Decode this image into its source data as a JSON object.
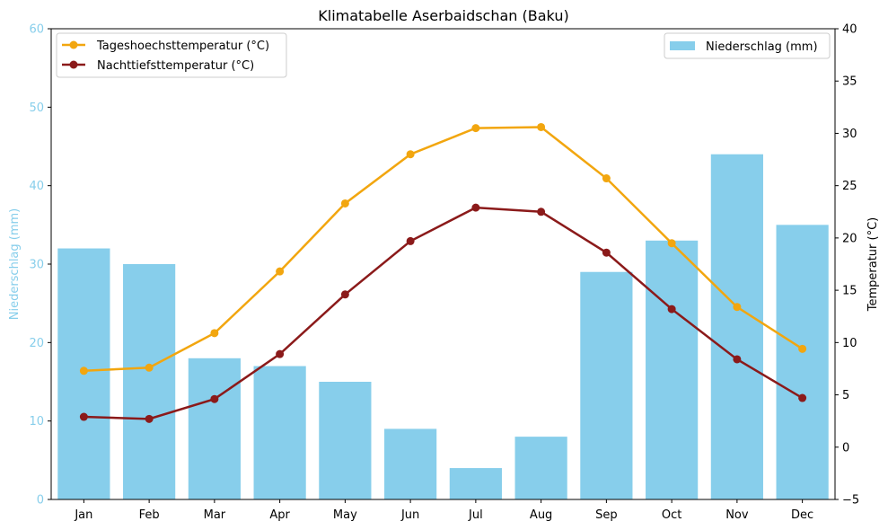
{
  "chart_data": {
    "type": "bar+line",
    "title": "Klimatabelle Aserbaidschan (Baku)",
    "categories": [
      "Jan",
      "Feb",
      "Mar",
      "Apr",
      "May",
      "Jun",
      "Jul",
      "Aug",
      "Sep",
      "Oct",
      "Nov",
      "Dec"
    ],
    "left_axis": {
      "label": "Niederschlag (mm)",
      "ylim": [
        0,
        60
      ],
      "ticks": [
        "0",
        "10",
        "20",
        "30",
        "40",
        "50",
        "60"
      ],
      "color": "#87ceeb"
    },
    "right_axis": {
      "label": "Temperatur (°C)",
      "ylim": [
        -5,
        40
      ],
      "ticks": [
        "−5",
        "0",
        "5",
        "10",
        "15",
        "20",
        "25",
        "30",
        "35",
        "40"
      ]
    },
    "bars": {
      "name": "Niederschlag (mm)",
      "values": [
        32,
        30,
        18,
        17,
        15,
        9,
        4,
        8,
        29,
        33,
        44,
        35
      ],
      "color": "#87ceeb"
    },
    "lines": [
      {
        "name": "Tageshoechsttemperatur (°C)",
        "values": [
          7.3,
          7.6,
          10.9,
          16.8,
          23.3,
          28.0,
          30.5,
          30.6,
          25.7,
          19.5,
          13.4,
          9.4
        ],
        "color": "#f2a60f"
      },
      {
        "name": "Nachttiefsttemperatur (°C)",
        "values": [
          2.9,
          2.7,
          4.6,
          8.9,
          14.6,
          19.7,
          22.9,
          22.5,
          18.6,
          13.2,
          8.4,
          4.7
        ],
        "color": "#8b1a1a"
      }
    ],
    "legends": {
      "lines_placement": "top-left",
      "bars_placement": "top-right"
    },
    "grid": false
  }
}
